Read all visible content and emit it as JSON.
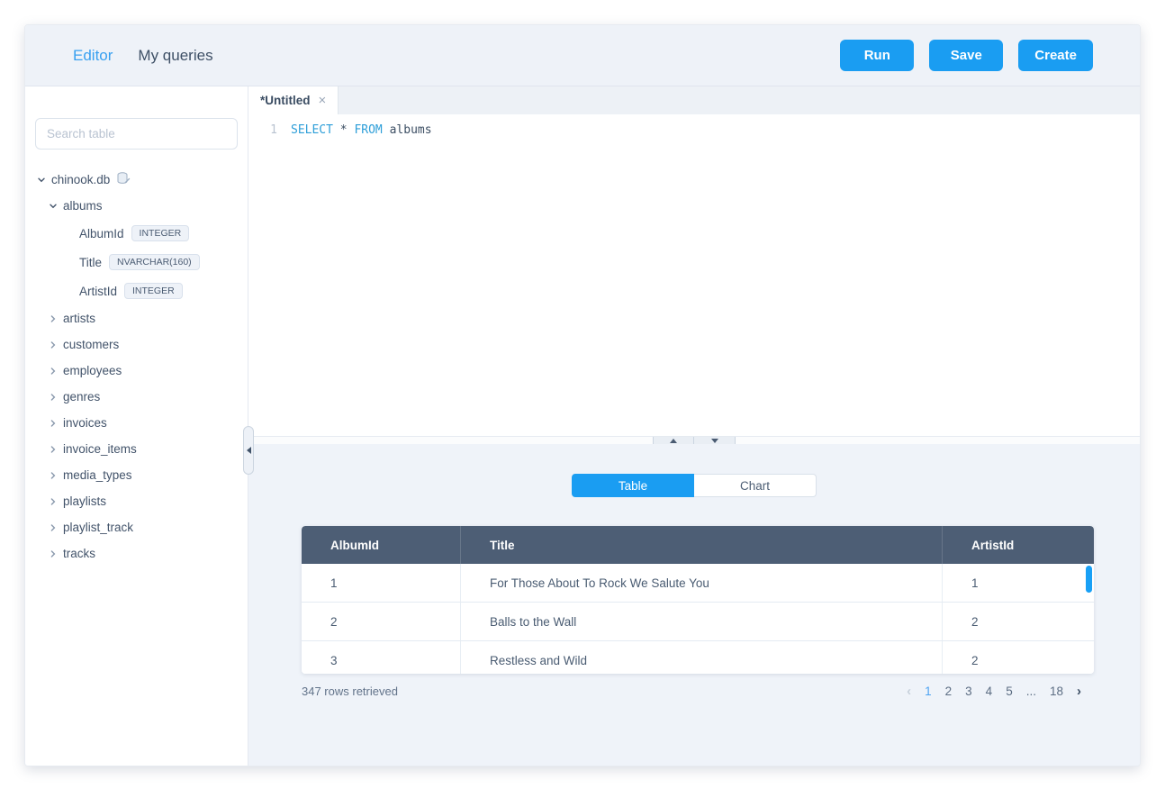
{
  "header": {
    "nav": [
      {
        "label": "Editor",
        "active": true
      },
      {
        "label": "My queries",
        "active": false
      }
    ],
    "buttons": [
      {
        "label": "Run"
      },
      {
        "label": "Save"
      },
      {
        "label": "Create"
      }
    ]
  },
  "sidebar": {
    "search_placeholder": "Search table",
    "database": {
      "name": "chinook.db",
      "icon": "database-icon"
    },
    "expanded_table": {
      "name": "albums",
      "columns": [
        {
          "name": "AlbumId",
          "type": "INTEGER"
        },
        {
          "name": "Title",
          "type": "NVARCHAR(160)"
        },
        {
          "name": "ArtistId",
          "type": "INTEGER"
        }
      ]
    },
    "tables": [
      "artists",
      "customers",
      "employees",
      "genres",
      "invoices",
      "invoice_items",
      "media_types",
      "playlists",
      "playlist_track",
      "tracks"
    ]
  },
  "editor": {
    "tab": {
      "title": "*Untitled",
      "close_glyph": "×"
    },
    "lines": [
      {
        "number": "1",
        "tokens": [
          {
            "text": "SELECT",
            "kind": "kw"
          },
          {
            "text": " * ",
            "kind": "plain"
          },
          {
            "text": "FROM",
            "kind": "kw"
          },
          {
            "text": " albums",
            "kind": "plain"
          }
        ]
      }
    ]
  },
  "results": {
    "view_toggle": [
      {
        "label": "Table",
        "active": true
      },
      {
        "label": "Chart",
        "active": false
      }
    ],
    "table": {
      "headers": [
        "AlbumId",
        "Title",
        "ArtistId"
      ],
      "rows": [
        [
          "1",
          "For Those About To Rock We Salute You",
          "1"
        ],
        [
          "2",
          "Balls to the Wall",
          "2"
        ],
        [
          "3",
          "Restless and Wild",
          "2"
        ]
      ]
    },
    "status": "347 rows retrieved",
    "pagination": {
      "items": [
        {
          "label": "‹",
          "kind": "arrow",
          "disabled": true
        },
        {
          "label": "1",
          "kind": "page",
          "active": true
        },
        {
          "label": "2",
          "kind": "page"
        },
        {
          "label": "3",
          "kind": "page"
        },
        {
          "label": "4",
          "kind": "page"
        },
        {
          "label": "5",
          "kind": "page"
        },
        {
          "label": "...",
          "kind": "ellipsis"
        },
        {
          "label": "18",
          "kind": "page"
        },
        {
          "label": "›",
          "kind": "arrow"
        }
      ]
    }
  },
  "colors": {
    "accent": "#1a9df2",
    "table_header_bg": "#4d5e75"
  }
}
